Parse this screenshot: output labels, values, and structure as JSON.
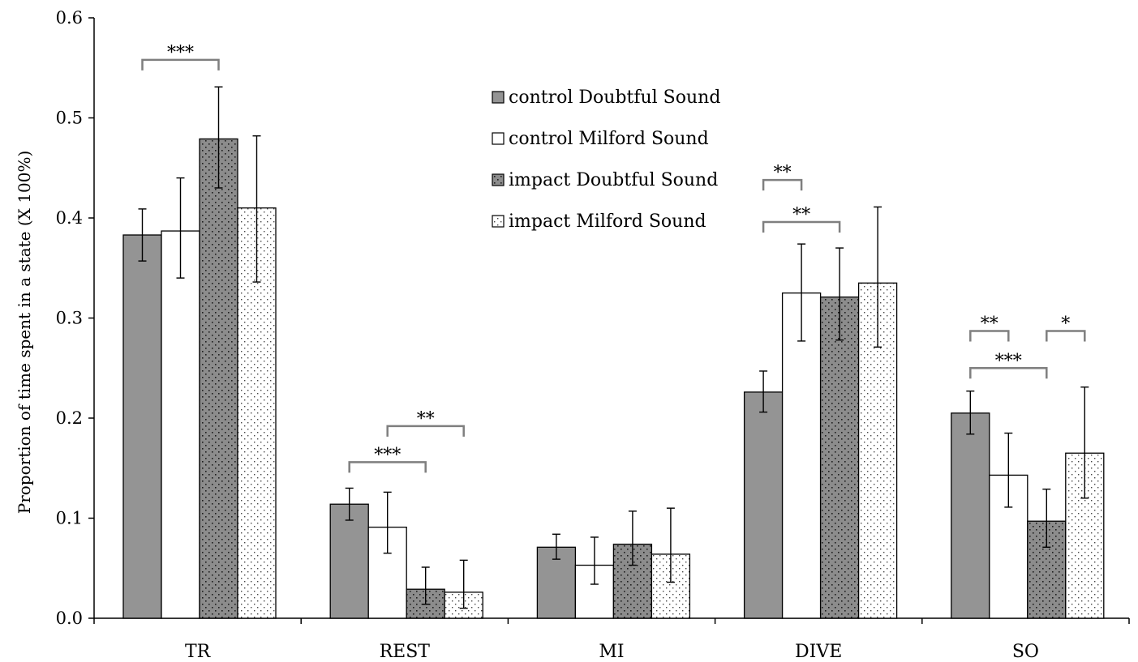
{
  "chart_data": {
    "type": "bar",
    "title": "",
    "xlabel": "",
    "ylabel": "Proportion of time spent in a state (X 100%)",
    "ylim": [
      0,
      0.6
    ],
    "yticks": [
      "0.0",
      "0.1",
      "0.2",
      "0.3",
      "0.4",
      "0.5",
      "0.6"
    ],
    "grid": false,
    "legend_position": "top-center",
    "categories": [
      "TR",
      "REST",
      "MI",
      "DIVE",
      "SO"
    ],
    "series": [
      {
        "name": "control Doubtful Sound",
        "fill": "solid",
        "color": "#949494",
        "values": [
          0.383,
          0.114,
          0.071,
          0.226,
          0.205
        ],
        "err_low": [
          0.357,
          0.098,
          0.059,
          0.206,
          0.184
        ],
        "err_high": [
          0.409,
          0.13,
          0.084,
          0.247,
          0.227
        ]
      },
      {
        "name": "control Milford Sound",
        "fill": "white",
        "color": "#ffffff",
        "values": [
          0.387,
          0.091,
          0.053,
          0.325,
          0.143
        ],
        "err_low": [
          0.34,
          0.065,
          0.034,
          0.277,
          0.111
        ],
        "err_high": [
          0.44,
          0.126,
          0.081,
          0.374,
          0.185
        ]
      },
      {
        "name": "impact Doubtful Sound",
        "fill": "dark-dotted",
        "color": "#8c8c8c",
        "values": [
          0.479,
          0.029,
          0.074,
          0.321,
          0.097
        ],
        "err_low": [
          0.43,
          0.014,
          0.053,
          0.278,
          0.071
        ],
        "err_high": [
          0.531,
          0.051,
          0.107,
          0.37,
          0.129
        ]
      },
      {
        "name": "impact Milford Sound",
        "fill": "light-dotted",
        "color": "#ffffff",
        "values": [
          0.41,
          0.026,
          0.064,
          0.335,
          0.165
        ],
        "err_low": [
          0.336,
          0.01,
          0.036,
          0.271,
          0.12
        ],
        "err_high": [
          0.482,
          0.058,
          0.11,
          0.411,
          0.231
        ]
      }
    ],
    "significance": [
      {
        "category": 0,
        "from": 0,
        "to": 2,
        "y": 0.558,
        "label": "***"
      },
      {
        "category": 1,
        "from": 0,
        "to": 2,
        "y": 0.156,
        "label": "***"
      },
      {
        "category": 1,
        "from": 1,
        "to": 3,
        "y": 0.192,
        "label": "**"
      },
      {
        "category": 3,
        "from": 0,
        "to": 1,
        "y": 0.438,
        "label": "**"
      },
      {
        "category": 3,
        "from": 0,
        "to": 2,
        "y": 0.396,
        "label": "**"
      },
      {
        "category": 4,
        "from": 0,
        "to": 1,
        "y": 0.287,
        "label": "**"
      },
      {
        "category": 4,
        "from": 0,
        "to": 2,
        "y": 0.25,
        "label": "***"
      },
      {
        "category": 4,
        "from": 2,
        "to": 3,
        "y": 0.287,
        "label": "*"
      }
    ]
  }
}
